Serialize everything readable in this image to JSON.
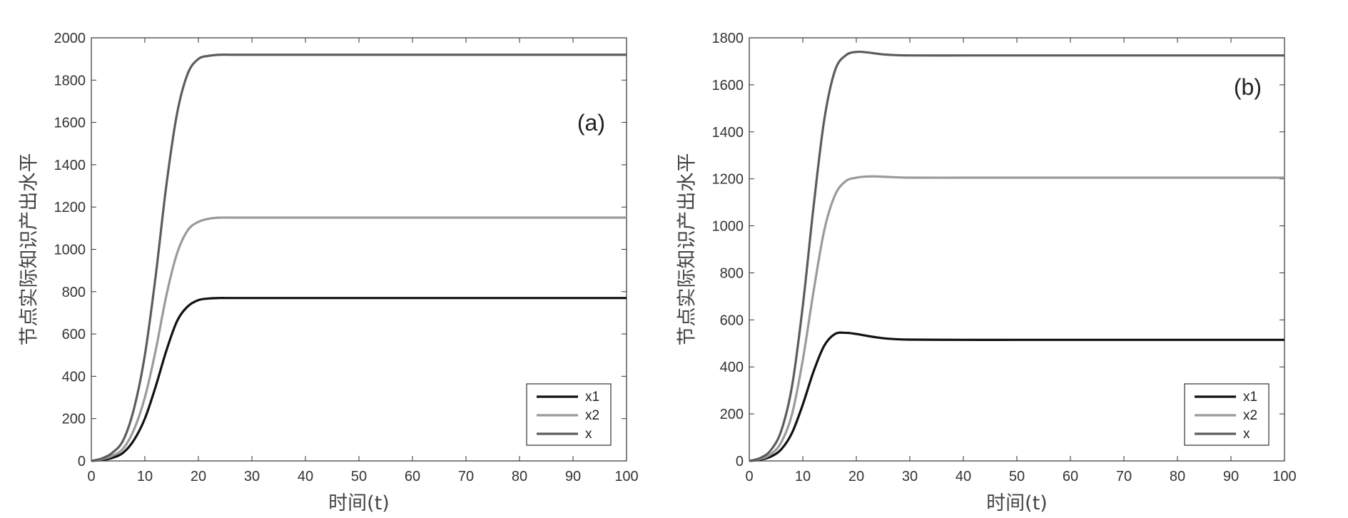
{
  "chart_data": [
    {
      "type": "line",
      "panel_label": "(a)",
      "xlabel": "时间(t)",
      "ylabel": "节点实际知识产出水平",
      "xlim": [
        0,
        100
      ],
      "ylim": [
        0,
        2000
      ],
      "xticks": [
        0,
        10,
        20,
        30,
        40,
        50,
        60,
        70,
        80,
        90,
        100
      ],
      "yticks": [
        0,
        200,
        400,
        600,
        800,
        1000,
        1200,
        1400,
        1600,
        1800,
        2000
      ],
      "grid": false,
      "legend_position": "bottom-right",
      "x": [
        0,
        2,
        4,
        6,
        8,
        10,
        12,
        14,
        16,
        18,
        20,
        22,
        24,
        26,
        30,
        40,
        50,
        60,
        70,
        80,
        90,
        100
      ],
      "series": [
        {
          "name": "x1",
          "color": "#111111",
          "values": [
            0,
            5,
            15,
            40,
            100,
            200,
            350,
            520,
            660,
            730,
            760,
            768,
            770,
            770,
            770,
            770,
            770,
            770,
            770,
            770,
            770,
            770
          ]
        },
        {
          "name": "x2",
          "color": "#9a9a9a",
          "values": [
            0,
            8,
            25,
            60,
            150,
            300,
            520,
            780,
            980,
            1090,
            1130,
            1145,
            1150,
            1150,
            1150,
            1150,
            1150,
            1150,
            1150,
            1150,
            1150,
            1150
          ]
        },
        {
          "name": "x",
          "color": "#5c5c5c",
          "values": [
            0,
            12,
            40,
            100,
            250,
            500,
            870,
            1300,
            1640,
            1830,
            1900,
            1915,
            1920,
            1920,
            1920,
            1920,
            1920,
            1920,
            1920,
            1920,
            1920,
            1920
          ]
        }
      ]
    },
    {
      "type": "line",
      "panel_label": "(b)",
      "xlabel": "时间(t)",
      "ylabel": "节点实际知识产出水平",
      "xlim": [
        0,
        100
      ],
      "ylim": [
        0,
        1800
      ],
      "xticks": [
        0,
        10,
        20,
        30,
        40,
        50,
        60,
        70,
        80,
        90,
        100
      ],
      "yticks": [
        0,
        200,
        400,
        600,
        800,
        1000,
        1200,
        1400,
        1600,
        1800
      ],
      "grid": false,
      "legend_position": "bottom-right",
      "x": [
        0,
        2,
        4,
        6,
        8,
        10,
        12,
        14,
        16,
        18,
        20,
        22,
        24,
        26,
        30,
        40,
        50,
        60,
        70,
        80,
        90,
        100
      ],
      "series": [
        {
          "name": "x1",
          "color": "#111111",
          "values": [
            0,
            5,
            18,
            50,
            120,
            240,
            380,
            490,
            540,
            545,
            540,
            532,
            525,
            520,
            516,
            515,
            515,
            515,
            515,
            515,
            515,
            515
          ]
        },
        {
          "name": "x2",
          "color": "#9a9a9a",
          "values": [
            0,
            8,
            28,
            80,
            200,
            430,
            720,
            980,
            1130,
            1190,
            1205,
            1210,
            1210,
            1208,
            1205,
            1205,
            1205,
            1205,
            1205,
            1205,
            1205,
            1205
          ]
        },
        {
          "name": "x",
          "color": "#5c5c5c",
          "values": [
            0,
            12,
            45,
            130,
            320,
            660,
            1080,
            1450,
            1660,
            1725,
            1740,
            1738,
            1732,
            1728,
            1725,
            1725,
            1725,
            1725,
            1725,
            1725,
            1725,
            1725
          ]
        }
      ]
    }
  ]
}
